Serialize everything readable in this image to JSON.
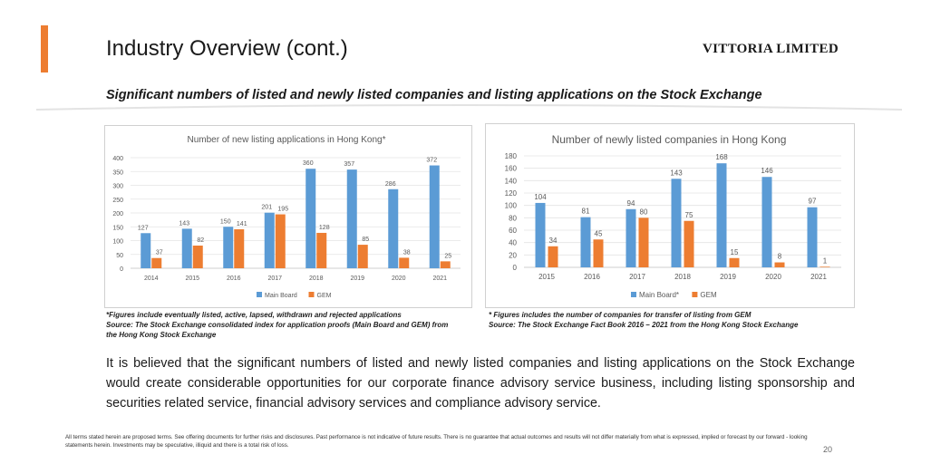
{
  "header": {
    "title": "Industry Overview (cont.)",
    "company": "VITTORIA LIMITED",
    "subtitle": "Significant numbers of listed and newly listed companies and listing applications on the Stock Exchange",
    "accent_color": "#ed7d31"
  },
  "chart_data": [
    {
      "type": "bar",
      "title": "Number of new listing applications in Hong Kong*",
      "categories": [
        "2014",
        "2015",
        "2016",
        "2017",
        "2018",
        "2019",
        "2020",
        "2021"
      ],
      "series": [
        {
          "name": "Main Board",
          "color": "#5b9bd5",
          "values": [
            127,
            143,
            150,
            201,
            360,
            357,
            286,
            372
          ]
        },
        {
          "name": "GEM",
          "color": "#ed7d31",
          "values": [
            37,
            82,
            141,
            195,
            128,
            85,
            38,
            25
          ]
        }
      ],
      "ylim": [
        0,
        400
      ],
      "yticks": [
        0,
        50,
        100,
        150,
        200,
        250,
        300,
        350,
        400
      ],
      "grid": true,
      "legend": "bottom"
    },
    {
      "type": "bar",
      "title": "Number of newly listed companies in Hong Kong",
      "categories": [
        "2015",
        "2016",
        "2017",
        "2018",
        "2019",
        "2020",
        "2021"
      ],
      "series": [
        {
          "name": "Main Board*",
          "color": "#5b9bd5",
          "values": [
            104,
            81,
            94,
            143,
            168,
            146,
            97
          ]
        },
        {
          "name": "GEM",
          "color": "#ed7d31",
          "values": [
            34,
            45,
            80,
            75,
            15,
            8,
            1
          ]
        }
      ],
      "ylim": [
        0,
        180
      ],
      "yticks": [
        0,
        20,
        40,
        60,
        80,
        100,
        120,
        140,
        160,
        180
      ],
      "grid": true,
      "legend": "bottom"
    }
  ],
  "notes": {
    "left": [
      "*Figures include eventually listed, active, lapsed, withdrawn and rejected applications",
      "Source: The Stock Exchange consolidated index for application proofs (Main Board and GEM) from",
      "the Hong Kong Stock Exchange"
    ],
    "right": [
      "* Figures includes the number of companies for transfer of listing from GEM",
      "Source: The Stock Exchange Fact Book 2016 – 2021 from the Hong Kong Stock Exchange"
    ]
  },
  "body": "It is believed that the significant numbers of listed and newly listed companies and listing applications on the Stock Exchange would create considerable opportunities for our corporate finance advisory service business, including listing sponsorship and securities related service, financial advisory services and compliance advisory service.",
  "disclaimer": "All terms stated herein are proposed terms. See offering documents for further risks and disclosures. Past performance is not indicative of future results. There is no guarantee that actual outcomes and results will not differ materially from what is expressed, implied or forecast by our forward - looking statements herein. Investments may be speculative, illiquid and there is a total risk of loss.",
  "page_number": "20"
}
